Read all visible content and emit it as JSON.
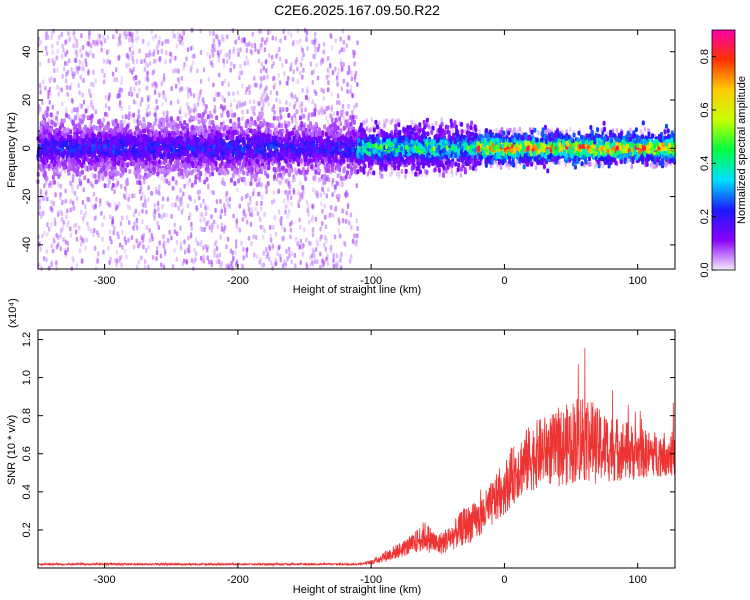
{
  "title": "C2E6.2025.167.09.50.R22",
  "chart_data": [
    {
      "type": "heatmap",
      "xlabel": "Height of straight line (km)",
      "ylabel": "Frequency (Hz)",
      "xlim": [
        -350,
        128
      ],
      "ylim": [
        -50,
        49
      ],
      "xticks": [
        -300,
        -200,
        -100,
        0,
        100
      ],
      "yticks": [
        -40,
        -20,
        0,
        20,
        40
      ],
      "tick_labels_x": [
        "-300",
        "-200",
        "-100",
        "0",
        "100"
      ],
      "tick_labels_y": [
        "-40",
        "-20",
        "0",
        "20",
        "40"
      ],
      "colorbar": {
        "label": "Normalized spectral amplitude",
        "range": [
          0,
          0.9
        ],
        "ticks": [
          "0.0",
          "0.2",
          "0.4",
          "0.6",
          "0.8"
        ],
        "tick_values": [
          0,
          0.2,
          0.4,
          0.6,
          0.8
        ],
        "colors": [
          "#f4ecfb",
          "#8a00ff",
          "#1a1aff",
          "#00e0ff",
          "#00ff40",
          "#c8ff00",
          "#ffcc00",
          "#ff3300",
          "#ff00aa"
        ]
      },
      "regions": [
        {
          "x_range": [
            -350,
            -110
          ],
          "band_halfwidth_hz": 10,
          "band_amplitude": 0.15,
          "scatter_extent_hz": 50
        },
        {
          "x_range": [
            -110,
            -20
          ],
          "band_halfwidth_hz": 7,
          "band_amplitude": 0.3,
          "scatter_extent_hz": 12
        },
        {
          "x_range": [
            -20,
            128
          ],
          "band_halfwidth_hz": 5,
          "band_amplitude": 0.5,
          "scatter_extent_hz": 8
        }
      ],
      "grid": false
    },
    {
      "type": "line",
      "xlabel": "Height of straight line (km)",
      "ylabel": "SNR (10 * v/v)",
      "yscale_label": "(x10⁴)",
      "xlim": [
        -350,
        128
      ],
      "ylim": [
        0,
        1.25
      ],
      "xticks": [
        -300,
        -200,
        -100,
        0,
        100
      ],
      "yticks": [
        0.2,
        0.4,
        0.6,
        0.8,
        1.0,
        1.2
      ],
      "tick_labels_x": [
        "-300",
        "-200",
        "-100",
        "0",
        "100"
      ],
      "tick_labels_y": [
        "0.2",
        "0.4",
        "0.6",
        "0.8",
        "1.0",
        "1.2"
      ],
      "series": [
        {
          "color": "#ee3333",
          "x": [
            -350,
            -300,
            -250,
            -200,
            -150,
            -110,
            -100,
            -90,
            -80,
            -70,
            -60,
            -50,
            -40,
            -30,
            -20,
            -10,
            0,
            10,
            20,
            30,
            40,
            50,
            60,
            70,
            80,
            90,
            100,
            110,
            128
          ],
          "y": [
            0.02,
            0.02,
            0.02,
            0.02,
            0.02,
            0.02,
            0.03,
            0.06,
            0.09,
            0.12,
            0.17,
            0.12,
            0.16,
            0.22,
            0.25,
            0.33,
            0.42,
            0.52,
            0.58,
            0.62,
            0.62,
            0.66,
            0.7,
            0.64,
            0.63,
            0.62,
            0.6,
            0.6,
            0.6
          ],
          "noise_amplitude": [
            0.005,
            0.005,
            0.005,
            0.005,
            0.005,
            0.005,
            0.01,
            0.03,
            0.04,
            0.05,
            0.08,
            0.06,
            0.07,
            0.1,
            0.1,
            0.12,
            0.14,
            0.16,
            0.18,
            0.18,
            0.2,
            0.22,
            0.25,
            0.2,
            0.18,
            0.16,
            0.14,
            0.12,
            0.12
          ]
        }
      ],
      "grid": false
    }
  ]
}
